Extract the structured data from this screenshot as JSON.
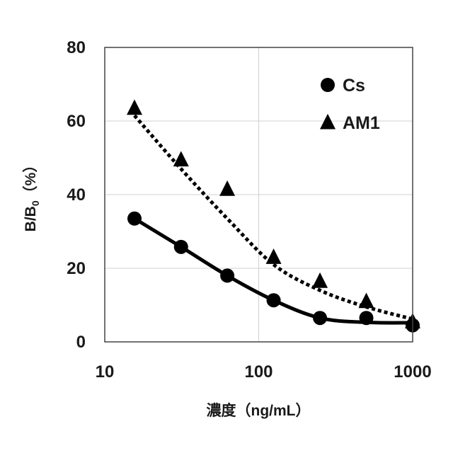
{
  "chart_data": {
    "type": "scatter",
    "title": "",
    "xlabel": "濃度（ng/mL）",
    "ylabel_main": "B/B",
    "ylabel_sub": "0",
    "ylabel_suffix": "（%）",
    "x_scale": "log",
    "xlim": [
      10,
      1000
    ],
    "ylim": [
      0,
      80
    ],
    "x_ticks": [
      10,
      100,
      1000
    ],
    "x_tick_labels": [
      "10",
      "100",
      "1000"
    ],
    "y_ticks": [
      0,
      20,
      40,
      60,
      80
    ],
    "y_tick_labels": [
      "0",
      "20",
      "40",
      "60",
      "80"
    ],
    "grid": true,
    "legend_position": "top-right",
    "series": [
      {
        "name": "Cs",
        "marker": "circle",
        "line_style": "solid",
        "color": "#000000",
        "x": [
          15.6,
          31.3,
          62.5,
          125,
          250,
          500,
          1000
        ],
        "y": [
          33.5,
          25.8,
          18,
          11.3,
          6.5,
          6.5,
          4.5
        ],
        "fit_y": [
          33.5,
          25.8,
          18,
          11.3,
          6.5,
          5.3,
          5.2
        ]
      },
      {
        "name": "AM1",
        "marker": "triangle",
        "line_style": "dotted",
        "color": "#000000",
        "x": [
          15.6,
          31.3,
          62.5,
          125,
          250,
          500,
          1000
        ],
        "y": [
          63.5,
          49.5,
          41.5,
          23,
          16.5,
          11,
          5.5
        ],
        "fit_y": [
          61.5,
          47,
          33.5,
          21,
          14,
          9.5,
          6.2
        ]
      }
    ]
  }
}
